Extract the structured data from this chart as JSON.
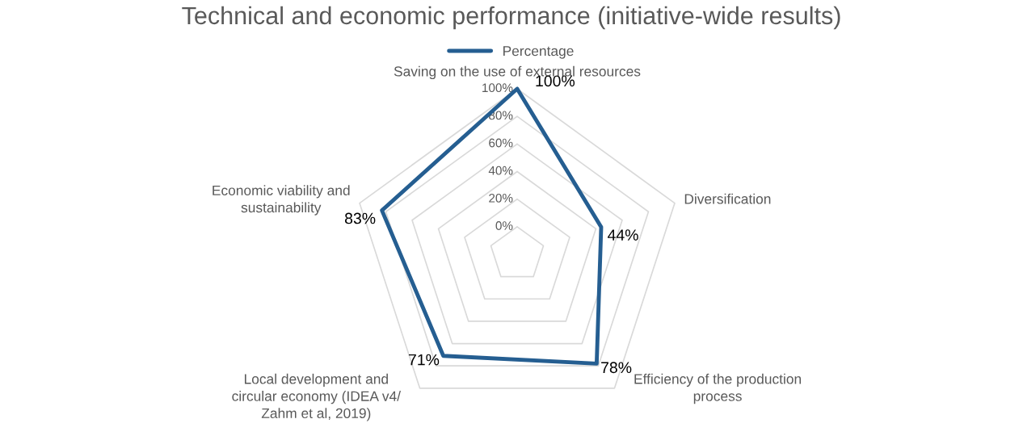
{
  "chart_data": {
    "type": "radar",
    "title": "Technical and economic performance (initiative-wide results)",
    "categories": [
      "Saving on the use of external resources",
      "Diversification",
      "Efficiency of the production\nprocess",
      "Local development and\ncircular economy (IDEA v4/\nZahm et al, 2019)",
      "Economic viability and\nsustainability"
    ],
    "series": [
      {
        "name": "Percentage",
        "color": "#255e91",
        "values": [
          100,
          44,
          78,
          71,
          83
        ],
        "value_labels": [
          "100%",
          "44%",
          "78%",
          "71%",
          "83%"
        ]
      }
    ],
    "ylim": [
      -20,
      100
    ],
    "yticks": [
      {
        "value": 0,
        "label": "0%"
      },
      {
        "value": 20,
        "label": "20%"
      },
      {
        "value": 40,
        "label": "40%"
      },
      {
        "value": 60,
        "label": "60%"
      },
      {
        "value": 80,
        "label": "80%"
      },
      {
        "value": 100,
        "label": "100%"
      }
    ],
    "data_labels": true,
    "legend": "top",
    "grid": true
  }
}
